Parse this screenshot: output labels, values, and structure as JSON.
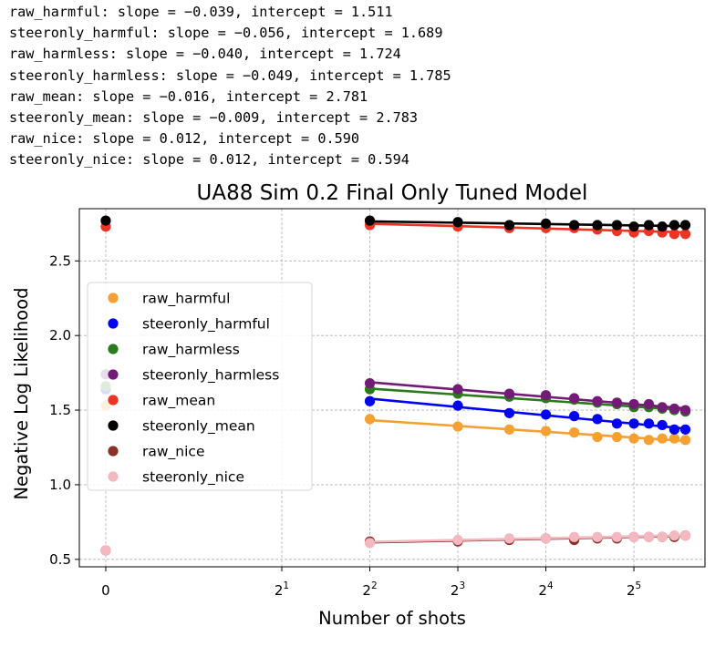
{
  "regression_lines": [
    "raw_harmful: slope = −0.039, intercept = 1.511",
    "steeronly_harmful: slope = −0.056, intercept = 1.689",
    "raw_harmless: slope = −0.040, intercept = 1.724",
    "steeronly_harmless: slope = −0.049, intercept = 1.785",
    "raw_mean: slope = −0.016, intercept = 2.781",
    "steeronly_mean: slope = −0.009, intercept = 2.783",
    "raw_nice: slope = 0.012, intercept = 0.590",
    "steeronly_nice: slope = 0.012, intercept = 0.594"
  ],
  "chart_data": {
    "type": "scatter",
    "title": "UA88 Sim 0.2 Final Only Tuned Model",
    "xlabel": "Number of shots",
    "ylabel": "Negative Log Likelihood",
    "x_scale": "symlog base 2",
    "x_ticks": [
      0,
      2,
      4,
      8,
      16,
      32
    ],
    "x_tick_labels": [
      {
        "base": "0",
        "exp": ""
      },
      {
        "base": "2",
        "exp": "1"
      },
      {
        "base": "2",
        "exp": "2"
      },
      {
        "base": "2",
        "exp": "3"
      },
      {
        "base": "2",
        "exp": "4"
      },
      {
        "base": "2",
        "exp": "5"
      }
    ],
    "y_ticks": [
      0.5,
      1.0,
      1.5,
      2.0,
      2.5
    ],
    "y_tick_labels": [
      "0.5",
      "1.0",
      "1.5",
      "2.0",
      "2.5"
    ],
    "xlim": [
      -0.3,
      56
    ],
    "ylim": [
      0.45,
      2.85
    ],
    "grid": true,
    "legend_position": "center-left",
    "x": [
      0,
      4,
      8,
      12,
      16,
      20,
      24,
      28,
      32,
      36,
      40,
      44,
      48
    ],
    "series": [
      {
        "name": "raw_harmful",
        "color": "#f5a030",
        "values": [
          1.53,
          1.44,
          1.39,
          1.37,
          1.36,
          1.35,
          1.32,
          1.32,
          1.31,
          1.3,
          1.31,
          1.31,
          1.3
        ],
        "fit": {
          "slope": -0.039,
          "intercept": 1.511
        }
      },
      {
        "name": "steeronly_harmful",
        "color": "#0000f5",
        "values": [
          1.64,
          1.56,
          1.53,
          1.48,
          1.47,
          1.46,
          1.44,
          1.41,
          1.41,
          1.41,
          1.4,
          1.37,
          1.37
        ],
        "fit": {
          "slope": -0.056,
          "intercept": 1.689
        }
      },
      {
        "name": "raw_harmless",
        "color": "#2a7a1c",
        "values": [
          1.66,
          1.64,
          1.61,
          1.59,
          1.58,
          1.57,
          1.55,
          1.54,
          1.52,
          1.52,
          1.51,
          1.5,
          1.49
        ],
        "fit": {
          "slope": -0.04,
          "intercept": 1.724
        }
      },
      {
        "name": "steeronly_harmless",
        "color": "#741b78",
        "values": [
          1.74,
          1.68,
          1.64,
          1.61,
          1.6,
          1.58,
          1.56,
          1.55,
          1.54,
          1.54,
          1.52,
          1.51,
          1.5
        ],
        "fit": {
          "slope": -0.049,
          "intercept": 1.785
        }
      },
      {
        "name": "raw_mean",
        "color": "#ee3424",
        "values": [
          2.73,
          2.74,
          2.73,
          2.72,
          2.72,
          2.72,
          2.71,
          2.7,
          2.69,
          2.7,
          2.69,
          2.68,
          2.68
        ],
        "fit": {
          "slope": -0.016,
          "intercept": 2.781
        }
      },
      {
        "name": "steeronly_mean",
        "color": "#000000",
        "values": [
          2.77,
          2.77,
          2.76,
          2.74,
          2.75,
          2.74,
          2.74,
          2.74,
          2.73,
          2.74,
          2.73,
          2.74,
          2.74
        ],
        "fit": {
          "slope": -0.009,
          "intercept": 2.783
        }
      },
      {
        "name": "raw_nice",
        "color": "#8b3028",
        "values": [
          0.56,
          0.62,
          0.62,
          0.63,
          0.64,
          0.63,
          0.64,
          0.64,
          0.65,
          0.65,
          0.65,
          0.65,
          0.66
        ],
        "fit": {
          "slope": 0.012,
          "intercept": 0.59
        }
      },
      {
        "name": "steeronly_nice",
        "color": "#f4b8c0",
        "values": [
          0.56,
          0.61,
          0.63,
          0.64,
          0.64,
          0.65,
          0.65,
          0.65,
          0.65,
          0.65,
          0.65,
          0.66,
          0.66
        ],
        "fit": {
          "slope": 0.012,
          "intercept": 0.594
        }
      }
    ]
  }
}
